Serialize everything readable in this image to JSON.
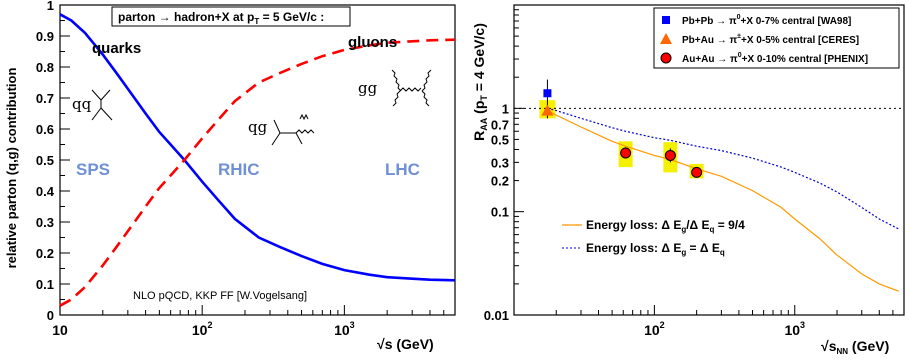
{
  "chart_data": [
    {
      "type": "line",
      "header": "parton → hadron+X at p",
      "header_sub": "T",
      "header_tail": " = 5 GeV/c :",
      "xlabel_root": "√",
      "xlabel": "s (GeV)",
      "ylabel": "relative parton (q,g) contribution",
      "xscale": "log",
      "xlim": [
        10,
        6000
      ],
      "ylim": [
        0,
        1
      ],
      "yticks": [
        "0",
        "0.1",
        "0.2",
        "0.3",
        "0.4",
        "0.5",
        "0.6",
        "0.7",
        "0.8",
        "0.9",
        "1"
      ],
      "xticks": [
        {
          "v": 10,
          "label": "10"
        },
        {
          "v": 100,
          "label": "10",
          "sup": "2"
        },
        {
          "v": 1000,
          "label": "10",
          "sup": "3"
        }
      ],
      "series": [
        {
          "name": "quarks",
          "color": "#0000ff",
          "style": "solid",
          "x": [
            10,
            12,
            15,
            20,
            25,
            30,
            40,
            50,
            60,
            75,
            100,
            130,
            170,
            250,
            350,
            500,
            700,
            1000,
            1500,
            2000,
            3000,
            4000,
            6000
          ],
          "y": [
            0.97,
            0.95,
            0.91,
            0.84,
            0.78,
            0.73,
            0.65,
            0.59,
            0.55,
            0.5,
            0.43,
            0.37,
            0.31,
            0.25,
            0.22,
            0.19,
            0.165,
            0.145,
            0.13,
            0.122,
            0.117,
            0.114,
            0.112
          ]
        },
        {
          "name": "gluons",
          "color": "#ff0000",
          "style": "dashed",
          "x": [
            10,
            12,
            15,
            20,
            25,
            30,
            40,
            50,
            60,
            75,
            100,
            130,
            170,
            250,
            350,
            500,
            700,
            1000,
            1500,
            2000,
            3000,
            4000,
            6000
          ],
          "y": [
            0.03,
            0.05,
            0.09,
            0.16,
            0.22,
            0.27,
            0.35,
            0.41,
            0.45,
            0.5,
            0.57,
            0.63,
            0.69,
            0.75,
            0.78,
            0.81,
            0.835,
            0.855,
            0.87,
            0.878,
            0.883,
            0.886,
            0.888
          ]
        }
      ],
      "annotations": {
        "quarks": "quarks",
        "gluons": "gluons",
        "qq": "qq",
        "qg": "qg",
        "gg": "gg",
        "sps": "SPS",
        "rhic": "RHIC",
        "lhc": "LHC",
        "footnote": "NLO pQCD, KKP FF [W.Vogelsang]"
      },
      "region_color": "#6f8fd6"
    },
    {
      "type": "scatter",
      "xlabel_root": "√",
      "xlabel": "s",
      "xlabel_sub": "NN",
      "xlabel_tail": " (GeV)",
      "ylabel": "R",
      "ylabel_sub": "AA",
      "ylabel_mid": " (p",
      "ylabel_sub2": "T",
      "ylabel_tail": " = 4 GeV/c)",
      "xscale": "log",
      "yscale": "log",
      "xlim": [
        10,
        6000
      ],
      "ylim": [
        0.01,
        10
      ],
      "yticks": [
        {
          "v": 0.01,
          "label": "0.01"
        },
        {
          "v": 0.1,
          "label": "0.1"
        },
        {
          "v": 0.2,
          "label": "0.2"
        },
        {
          "v": 0.3,
          "label": "0.3"
        },
        {
          "v": 0.5,
          "label": "0.5"
        },
        {
          "v": 0.7,
          "label": "0.7"
        },
        {
          "v": 1,
          "label": "1"
        }
      ],
      "xticks": [
        {
          "v": 100,
          "label": "10",
          "sup": "2"
        },
        {
          "v": 1000,
          "label": "10",
          "sup": "3"
        }
      ],
      "reference_line": 1,
      "legend": [
        {
          "name": "Pb+Pb → π",
          "sup": "0",
          "tail": "+X  0-7%  central [WA98]",
          "marker": "square",
          "color": "#0000ff"
        },
        {
          "name": "Pb+Au → π",
          "sup": "±",
          "tail": "+X  0-5% central [CERES]",
          "marker": "triangle",
          "color": "#ff6600"
        },
        {
          "name": "Au+Au → π",
          "sup": "0",
          "tail": "+X  0-10% central [PHENIX]",
          "marker": "circle",
          "color": "#ff0000"
        }
      ],
      "points": [
        {
          "series": "WA98",
          "x": 17.3,
          "y": 1.4,
          "err_lo": 1.15,
          "err_hi": 1.9,
          "marker": "square",
          "color": "#0000ff"
        },
        {
          "series": "CERES",
          "x": 17.3,
          "y": 0.95,
          "err_lo": 0.8,
          "err_hi": 1.15,
          "marker": "triangle",
          "color": "#ff6600"
        },
        {
          "series": "PHENIX",
          "x": 62.4,
          "y": 0.37,
          "err_lo": 0.33,
          "err_hi": 0.42,
          "sys_lo": 0.27,
          "sys_hi": 0.48,
          "marker": "circle",
          "color": "#ff0000"
        },
        {
          "series": "PHENIX",
          "x": 130,
          "y": 0.35,
          "err_lo": 0.3,
          "err_hi": 0.41,
          "sys_lo": 0.24,
          "sys_hi": 0.47,
          "marker": "circle",
          "color": "#ff0000"
        },
        {
          "series": "PHENIX",
          "x": 200,
          "y": 0.24,
          "err_lo": 0.22,
          "err_hi": 0.27,
          "sys_lo": 0.21,
          "sys_hi": 0.29,
          "marker": "circle",
          "color": "#ff0000"
        }
      ],
      "highlight_color": "#f4f000",
      "series": [
        {
          "name": "Energy loss: Δ E",
          "sub": "g",
          "mid": "/Δ E",
          "sub2": "q",
          "tail": " = 9/4",
          "color": "#ff9900",
          "style": "solid",
          "x": [
            17.3,
            20,
            30,
            50,
            62.4,
            100,
            130,
            200,
            300,
            500,
            800,
            1000,
            1500,
            2000,
            3000,
            4000,
            5500
          ],
          "y": [
            0.95,
            0.86,
            0.66,
            0.48,
            0.43,
            0.35,
            0.32,
            0.26,
            0.22,
            0.16,
            0.11,
            0.085,
            0.055,
            0.038,
            0.025,
            0.02,
            0.017
          ]
        },
        {
          "name": "Energy loss: Δ E",
          "sub": "g",
          "mid": " = Δ E",
          "sub2": "q",
          "tail": "",
          "color": "#0000cc",
          "style": "dotted",
          "x": [
            17.3,
            20,
            30,
            50,
            62.4,
            100,
            130,
            200,
            300,
            500,
            800,
            1000,
            1500,
            2000,
            3000,
            4000,
            5500
          ],
          "y": [
            1.0,
            0.95,
            0.8,
            0.65,
            0.6,
            0.52,
            0.49,
            0.43,
            0.39,
            0.33,
            0.27,
            0.24,
            0.19,
            0.155,
            0.11,
            0.085,
            0.068
          ]
        }
      ]
    }
  ]
}
